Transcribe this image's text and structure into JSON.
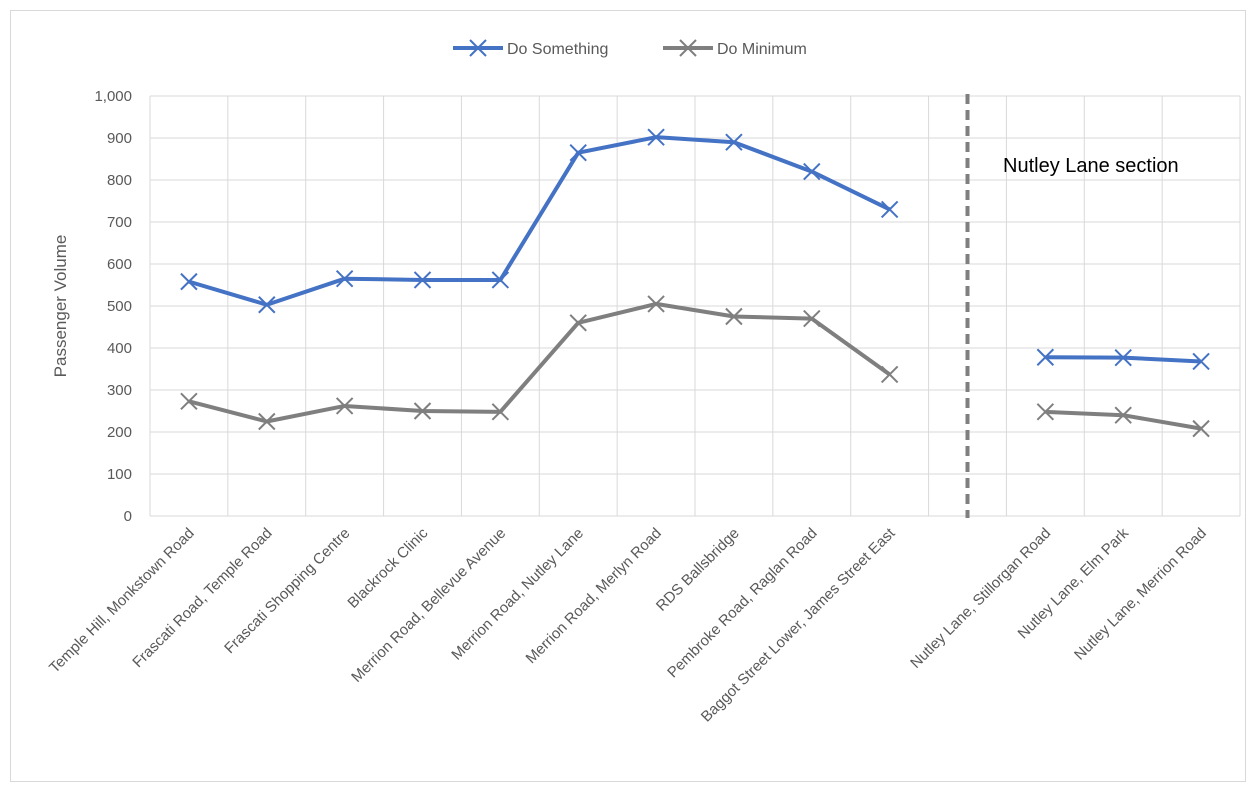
{
  "chart_data": {
    "type": "line",
    "title": "",
    "xlabel": "",
    "ylabel": "Passenger Volume",
    "ylim": [
      0,
      1000
    ],
    "y_ticks": [
      "0",
      "100",
      "200",
      "300",
      "400",
      "500",
      "600",
      "700",
      "800",
      "900",
      "1,000"
    ],
    "grid": true,
    "legend_position": "top",
    "categories": [
      "Temple Hill, Monkstown Road",
      "Frascati Road, Temple Road",
      "Frascati Shopping Centre",
      "Blackrock Clinic",
      "Merrion Road, Bellevue Avenue",
      "Merrion Road, Nutley Lane",
      "Merrion Road, Merlyn Road",
      "RDS Ballsbridge",
      "Pembroke Road, Raglan Road",
      "Baggot Street Lower, James Street East",
      "",
      "Nutley Lane, Stillorgan Road",
      "Nutley Lane, Elm Park",
      "Nutley Lane, Merrion Road"
    ],
    "series": [
      {
        "name": "Do Something",
        "color": "#4472c4",
        "values": [
          558,
          503,
          565,
          562,
          562,
          865,
          902,
          890,
          820,
          730,
          null,
          378,
          377,
          368
        ]
      },
      {
        "name": "Do Minimum",
        "color": "#7f7f7f",
        "values": [
          273,
          225,
          262,
          250,
          248,
          460,
          505,
          475,
          470,
          337,
          null,
          248,
          240,
          208
        ]
      }
    ],
    "section_divider": {
      "after_category": "Baggot Street Lower, James Street East",
      "color": "#7f7f7f"
    },
    "annotation": "Nutley Lane section"
  }
}
